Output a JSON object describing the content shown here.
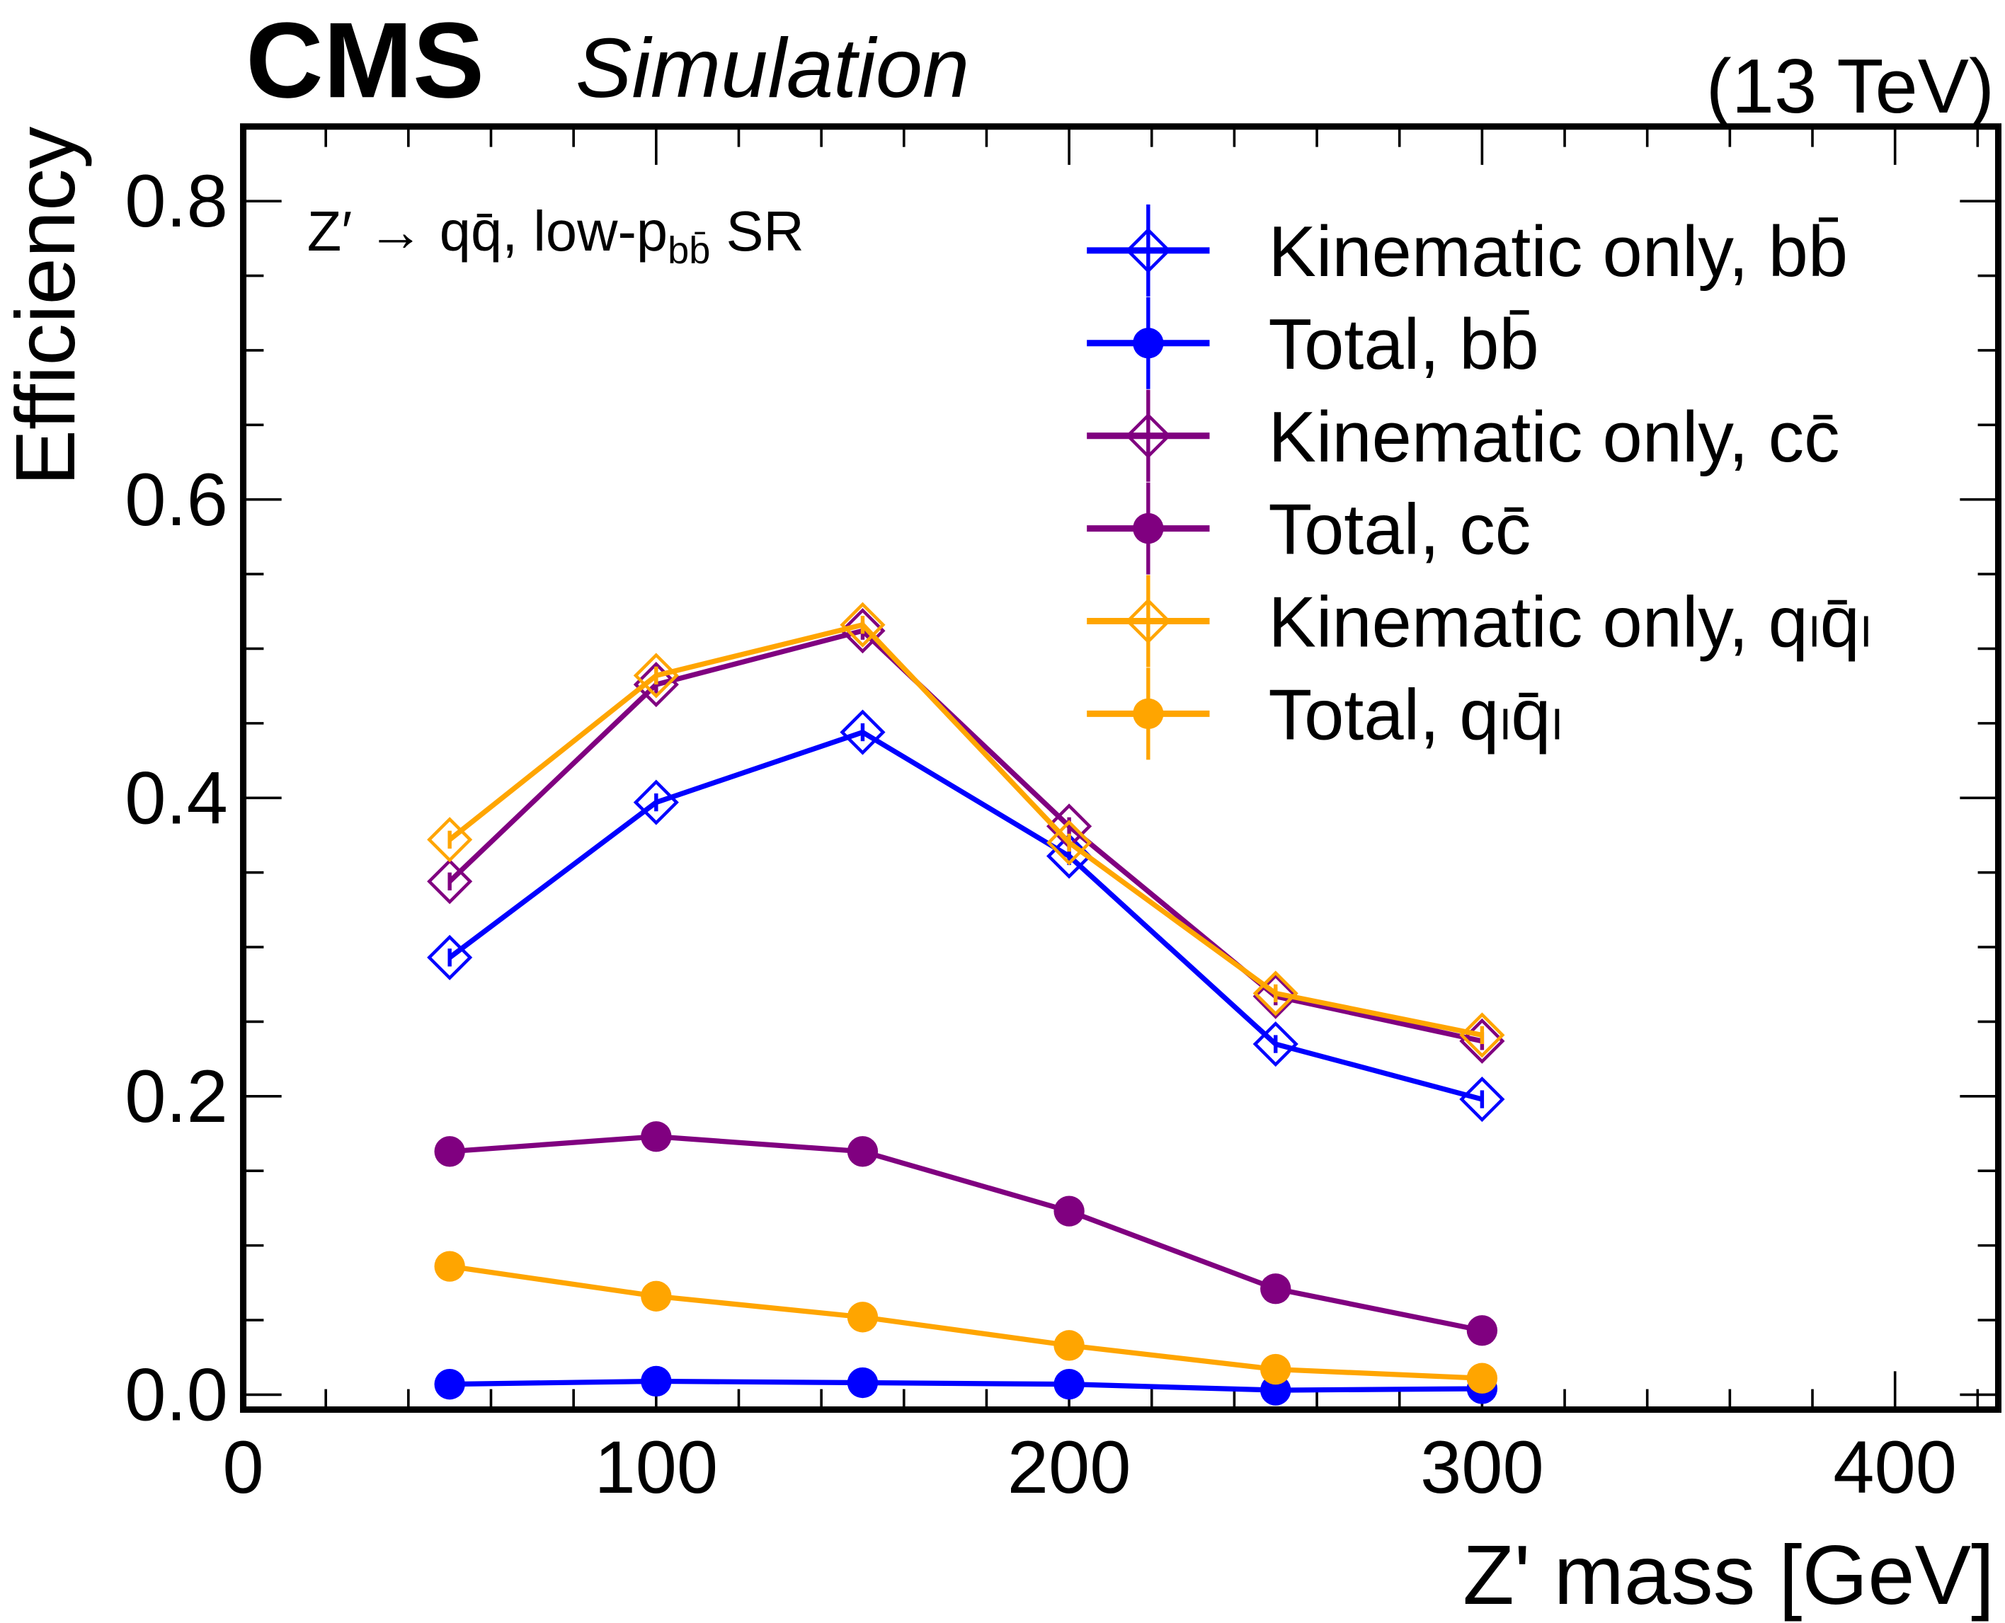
{
  "header": {
    "experiment": "CMS",
    "subtitle": "Simulation",
    "energy": "(13 TeV)"
  },
  "chart_data": {
    "type": "line",
    "annotation": "Z′ → qq̄, low-p",
    "annotation_sub": "bb̄",
    "annotation_tail": " SR",
    "xlabel": "Z' mass [GeV]",
    "ylabel": "Efficiency",
    "xlim": [
      0,
      425
    ],
    "ylim": [
      -0.01,
      0.85
    ],
    "xticks": [
      0,
      100,
      200,
      300,
      400
    ],
    "xtick_labels": [
      "0",
      "100",
      "200",
      "300",
      "400"
    ],
    "yticks": [
      0.0,
      0.2,
      0.4,
      0.6,
      0.8
    ],
    "ytick_labels": [
      "0.0",
      "0.2",
      "0.4",
      "0.6",
      "0.8"
    ],
    "grid": false,
    "legend_position": "top-right",
    "x": [
      50,
      100,
      150,
      200,
      250,
      300
    ],
    "series": [
      {
        "name": "Kinematic only, bb̄",
        "color": "#0000ff",
        "marker": "open-diamond",
        "values": [
          0.293,
          0.397,
          0.444,
          0.361,
          0.235,
          0.198
        ]
      },
      {
        "name": "Total, bb̄",
        "color": "#0000ff",
        "marker": "filled-circle",
        "values": [
          0.007,
          0.009,
          0.008,
          0.007,
          0.003,
          0.004
        ]
      },
      {
        "name": "Kinematic only, cc̄",
        "color": "#800080",
        "marker": "open-diamond",
        "values": [
          0.344,
          0.476,
          0.512,
          0.381,
          0.267,
          0.237
        ]
      },
      {
        "name": "Total, cc̄",
        "color": "#800080",
        "marker": "filled-circle",
        "values": [
          0.163,
          0.173,
          0.163,
          0.123,
          0.071,
          0.043
        ]
      },
      {
        "name": "Kinematic only, qₗq̄ₗ",
        "color": "#ffa500",
        "marker": "open-diamond",
        "values": [
          0.372,
          0.482,
          0.516,
          0.37,
          0.269,
          0.241
        ]
      },
      {
        "name": "Total, qₗq̄ₗ",
        "color": "#ffa500",
        "marker": "filled-circle",
        "values": [
          0.086,
          0.066,
          0.052,
          0.033,
          0.017,
          0.011
        ]
      }
    ]
  }
}
